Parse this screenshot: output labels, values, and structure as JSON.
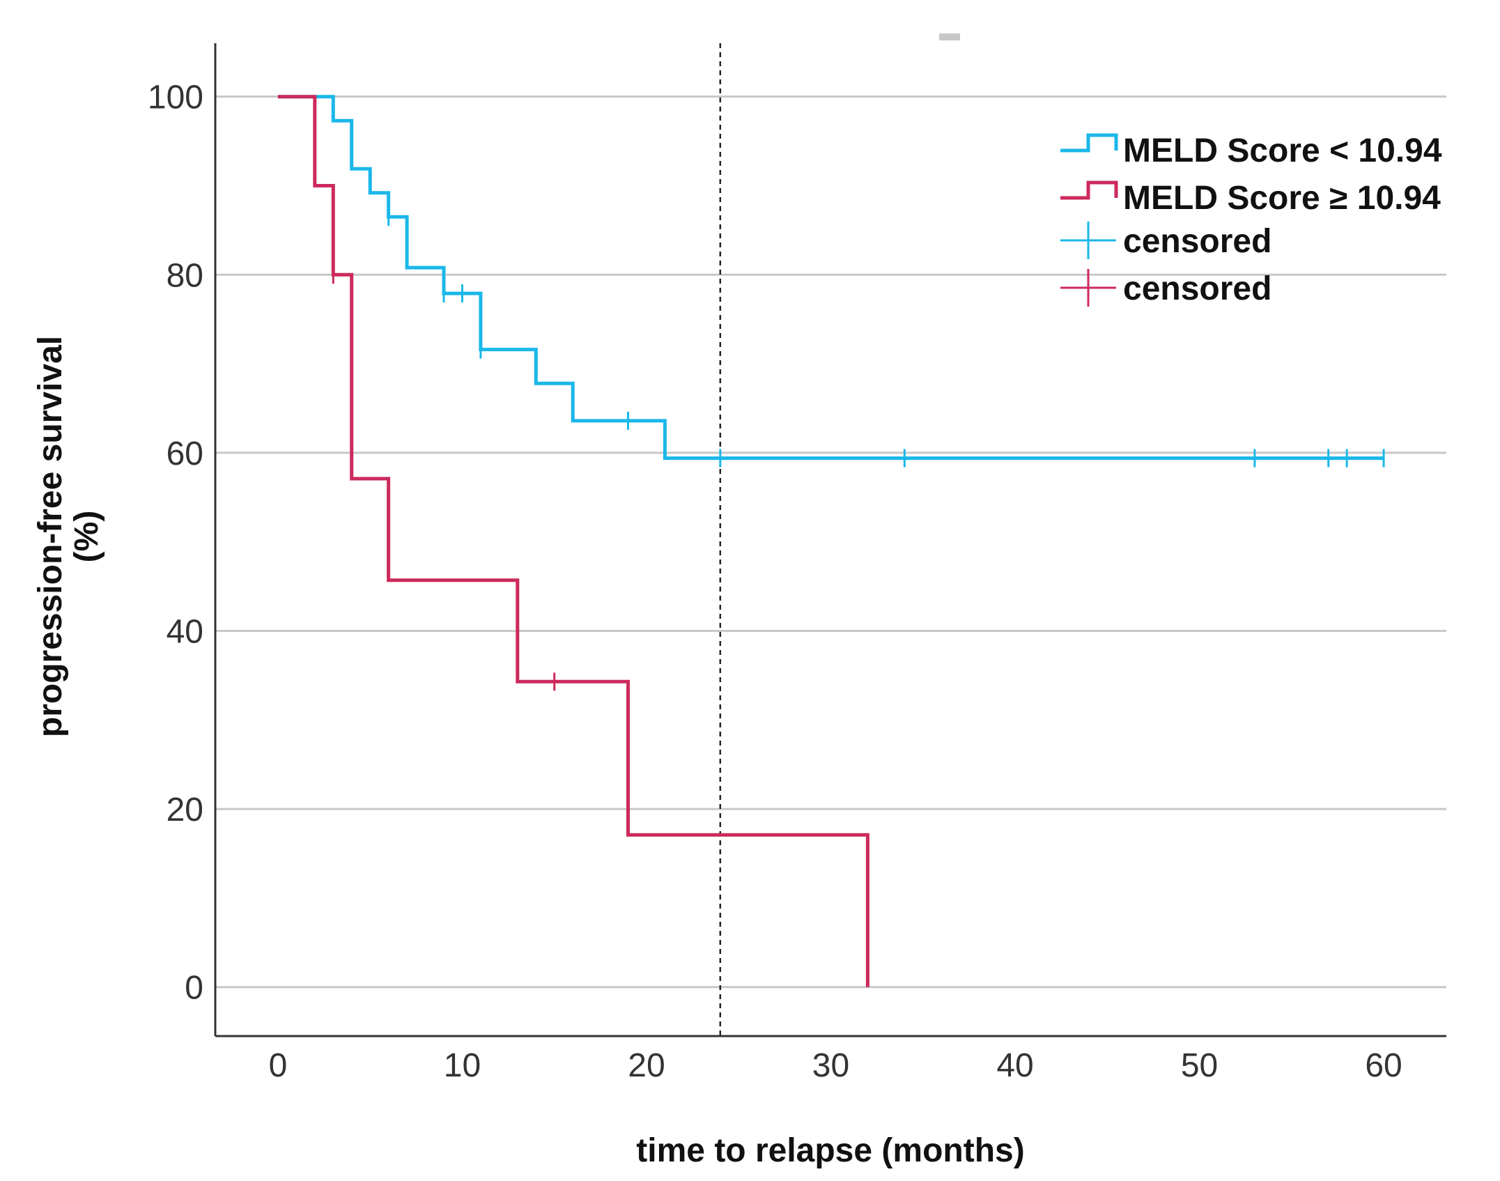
{
  "chart_data": {
    "type": "line",
    "subtype": "kaplan-meier",
    "title": "",
    "xlabel": "time to relapse (months)",
    "ylabel_line1": "progression-free survival",
    "ylabel_line2": "(%)",
    "xlim": [
      -3.4,
      63.4
    ],
    "ylim": [
      -5.5,
      106
    ],
    "xticks": [
      0,
      10,
      20,
      30,
      40,
      50,
      60
    ],
    "yticks": [
      0,
      20,
      40,
      60,
      80,
      100
    ],
    "grid": "horizontal",
    "reference_line_x": 24,
    "legend_position": "top-right",
    "series": [
      {
        "name": "MELD Score < 10.94",
        "color": "#1ab7ea",
        "steps": [
          [
            0,
            100
          ],
          [
            3,
            100
          ],
          [
            3,
            97.3
          ],
          [
            4,
            97.3
          ],
          [
            4,
            91.9
          ],
          [
            5,
            91.9
          ],
          [
            5,
            89.2
          ],
          [
            6,
            89.2
          ],
          [
            6,
            86.5
          ],
          [
            7,
            86.5
          ],
          [
            7,
            80.8
          ],
          [
            9,
            80.8
          ],
          [
            9,
            77.9
          ],
          [
            11,
            77.9
          ],
          [
            11,
            71.6
          ],
          [
            14,
            71.6
          ],
          [
            14,
            67.8
          ],
          [
            16,
            67.8
          ],
          [
            16,
            63.6
          ],
          [
            21,
            63.6
          ],
          [
            21,
            59.4
          ],
          [
            60,
            59.4
          ]
        ],
        "censored": [
          [
            6,
            86.5
          ],
          [
            9,
            77.9
          ],
          [
            10,
            77.9
          ],
          [
            11,
            71.6
          ],
          [
            19,
            63.6
          ],
          [
            24,
            59.4
          ],
          [
            34,
            59.4
          ],
          [
            53,
            59.4
          ],
          [
            57,
            59.4
          ],
          [
            58,
            59.4
          ],
          [
            60,
            59.4
          ]
        ],
        "censored_label": "censored"
      },
      {
        "name": "MELD Score ≥ 10.94",
        "color": "#cc2a5c",
        "steps": [
          [
            0,
            100
          ],
          [
            2,
            100
          ],
          [
            2,
            90
          ],
          [
            3,
            90
          ],
          [
            3,
            80
          ],
          [
            4,
            80
          ],
          [
            4,
            57.1
          ],
          [
            6,
            57.1
          ],
          [
            6,
            45.7
          ],
          [
            13,
            45.7
          ],
          [
            13,
            34.3
          ],
          [
            19,
            34.3
          ],
          [
            19,
            17.1
          ],
          [
            32,
            17.1
          ],
          [
            32,
            0
          ]
        ],
        "censored": [
          [
            3,
            80
          ],
          [
            15,
            34.3
          ]
        ],
        "censored_label": "censored"
      }
    ]
  }
}
